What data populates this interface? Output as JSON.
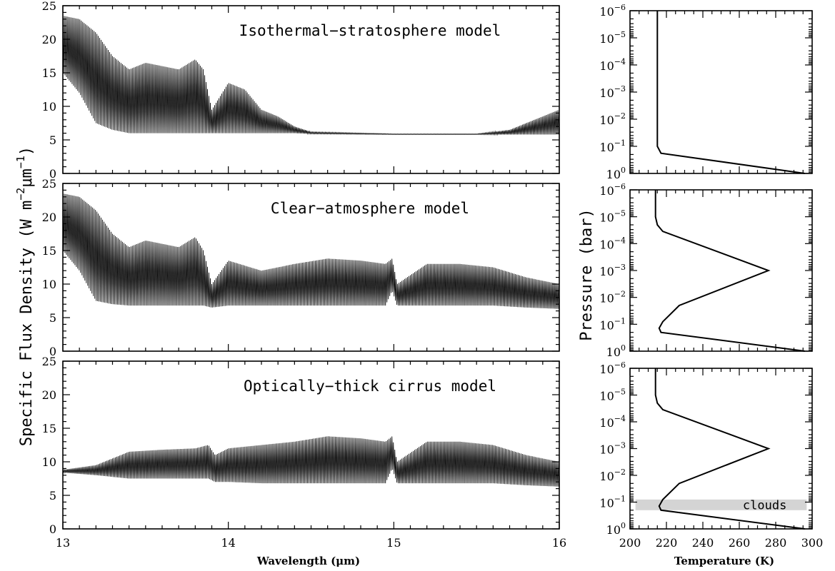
{
  "figure": {
    "y_axis_title": "Specific Flux Density (W m",
    "y_axis_exp1": "−2",
    "y_axis_mu": "μm",
    "y_axis_exp2": "−1",
    "y_axis_close": ")",
    "x_axis_title": "Wavelength (μm)",
    "pressure_axis_title": "Pressure (bar)",
    "temperature_axis_title": "Temperature (K)"
  },
  "chart_data": [
    {
      "type": "line",
      "title": "Isothermal−stratosphere model",
      "xlim": [
        13,
        16
      ],
      "ylim": [
        0,
        25
      ],
      "x_ticks": [
        13,
        14,
        15,
        16
      ],
      "y_ticks": [
        0,
        5,
        10,
        15,
        20,
        25
      ],
      "envelope": {
        "x": [
          13.0,
          13.1,
          13.2,
          13.3,
          13.4,
          13.5,
          13.6,
          13.7,
          13.8,
          13.85,
          13.9,
          14.0,
          14.1,
          14.2,
          14.3,
          14.4,
          14.5,
          15.0,
          15.5,
          15.7,
          15.85,
          16.0
        ],
        "upper": [
          23.5,
          23.0,
          21.0,
          17.5,
          15.5,
          16.5,
          16.0,
          15.5,
          17.0,
          15.5,
          9.5,
          13.5,
          12.5,
          9.5,
          8.5,
          7.0,
          6.2,
          5.9,
          5.9,
          6.5,
          8.0,
          9.5
        ],
        "lower": [
          15.0,
          12.0,
          7.5,
          6.5,
          6.0,
          6.0,
          6.0,
          6.0,
          6.0,
          6.0,
          6.0,
          6.0,
          6.0,
          6.0,
          6.0,
          6.0,
          5.9,
          5.8,
          5.8,
          5.8,
          5.8,
          5.8
        ]
      }
    },
    {
      "type": "line",
      "title": "Clear−atmosphere model",
      "xlim": [
        13,
        16
      ],
      "ylim": [
        0,
        25
      ],
      "x_ticks": [
        13,
        14,
        15,
        16
      ],
      "y_ticks": [
        0,
        5,
        10,
        15,
        20,
        25
      ],
      "envelope": {
        "x": [
          13.0,
          13.1,
          13.2,
          13.3,
          13.4,
          13.5,
          13.6,
          13.7,
          13.8,
          13.85,
          13.9,
          14.0,
          14.2,
          14.4,
          14.6,
          14.8,
          14.95,
          14.99,
          15.02,
          15.2,
          15.4,
          15.6,
          15.8,
          16.0
        ],
        "upper": [
          23.5,
          23.0,
          21.0,
          17.5,
          15.5,
          16.5,
          16.0,
          15.5,
          17.0,
          15.0,
          10.0,
          13.5,
          12.0,
          13.0,
          13.8,
          13.5,
          13.0,
          13.8,
          10.0,
          13.0,
          13.0,
          12.5,
          11.0,
          10.0
        ],
        "lower": [
          15.0,
          12.0,
          7.5,
          7.0,
          6.8,
          6.8,
          6.8,
          6.8,
          6.8,
          6.8,
          6.5,
          6.8,
          6.8,
          6.8,
          6.8,
          6.8,
          6.8,
          9.0,
          6.8,
          6.8,
          6.8,
          6.8,
          6.5,
          6.3
        ]
      }
    },
    {
      "type": "line",
      "title": "Optically−thick cirrus model",
      "xlim": [
        13,
        16
      ],
      "ylim": [
        0,
        25
      ],
      "x_ticks": [
        13,
        14,
        15,
        16
      ],
      "y_ticks": [
        0,
        5,
        10,
        15,
        20,
        25
      ],
      "envelope": {
        "x": [
          13.0,
          13.2,
          13.4,
          13.6,
          13.8,
          13.88,
          13.92,
          14.0,
          14.2,
          14.4,
          14.6,
          14.8,
          14.95,
          14.99,
          15.02,
          15.2,
          15.4,
          15.6,
          15.8,
          16.0
        ],
        "upper": [
          8.8,
          9.5,
          11.5,
          11.8,
          12.0,
          12.5,
          11.0,
          12.0,
          12.5,
          13.0,
          13.8,
          13.5,
          13.0,
          13.8,
          10.0,
          13.0,
          13.0,
          12.5,
          11.0,
          10.0
        ],
        "lower": [
          8.4,
          8.0,
          7.5,
          7.5,
          7.5,
          7.5,
          7.0,
          7.0,
          6.8,
          6.8,
          6.8,
          6.8,
          6.8,
          9.0,
          6.8,
          6.8,
          6.8,
          6.8,
          6.5,
          6.3
        ]
      }
    },
    {
      "type": "line",
      "series": [
        {
          "temperature": [
            215,
            215,
            215,
            217,
            296
          ],
          "pressure": [
            1e-06,
            0.0001,
            0.1,
            0.18,
            1.0
          ]
        }
      ],
      "xlim": [
        200,
        300
      ],
      "ylim": [
        1e-06,
        1
      ],
      "y_scale": "log",
      "y_inverted": true,
      "x_ticks": [
        200,
        220,
        240,
        260,
        280,
        300
      ],
      "y_ticks": [
        {
          "base": "10",
          "exp": "−6"
        },
        {
          "base": "10",
          "exp": "−5"
        },
        {
          "base": "10",
          "exp": "−4"
        },
        {
          "base": "10",
          "exp": "−3"
        },
        {
          "base": "10",
          "exp": "−2"
        },
        {
          "base": "10",
          "exp": "−1"
        },
        {
          "base": "10",
          "exp": "0"
        }
      ]
    },
    {
      "type": "line",
      "series": [
        {
          "temperature": [
            214,
            214,
            215,
            218,
            276,
            227,
            218,
            216,
            217,
            296
          ],
          "pressure": [
            1e-06,
            1e-05,
            2e-05,
            3.5e-05,
            0.001,
            0.02,
            0.08,
            0.14,
            0.2,
            1.0
          ]
        }
      ],
      "xlim": [
        200,
        300
      ],
      "ylim": [
        1e-06,
        1
      ],
      "y_scale": "log",
      "y_inverted": true,
      "x_ticks": [
        200,
        220,
        240,
        260,
        280,
        300
      ],
      "y_ticks": [
        {
          "base": "10",
          "exp": "−6"
        },
        {
          "base": "10",
          "exp": "−5"
        },
        {
          "base": "10",
          "exp": "−4"
        },
        {
          "base": "10",
          "exp": "−3"
        },
        {
          "base": "10",
          "exp": "−2"
        },
        {
          "base": "10",
          "exp": "−1"
        },
        {
          "base": "10",
          "exp": "0"
        }
      ]
    },
    {
      "type": "line",
      "series": [
        {
          "temperature": [
            214,
            214,
            215,
            218,
            276,
            227,
            218,
            216,
            217,
            296
          ],
          "pressure": [
            1e-06,
            1e-05,
            2e-05,
            3.5e-05,
            0.001,
            0.02,
            0.08,
            0.14,
            0.2,
            1.0
          ]
        }
      ],
      "xlim": [
        200,
        300
      ],
      "ylim": [
        1e-06,
        1
      ],
      "y_scale": "log",
      "y_inverted": true,
      "x_ticks": [
        200,
        220,
        240,
        260,
        280,
        300
      ],
      "y_ticks": [
        {
          "base": "10",
          "exp": "−6"
        },
        {
          "base": "10",
          "exp": "−5"
        },
        {
          "base": "10",
          "exp": "−4"
        },
        {
          "base": "10",
          "exp": "−3"
        },
        {
          "base": "10",
          "exp": "−2"
        },
        {
          "base": "10",
          "exp": "−1"
        },
        {
          "base": "10",
          "exp": "0"
        }
      ],
      "cloud_layer": {
        "label": "clouds",
        "temperature_range": [
          203,
          297
        ],
        "pressure_range": [
          0.08,
          0.2
        ]
      }
    }
  ]
}
